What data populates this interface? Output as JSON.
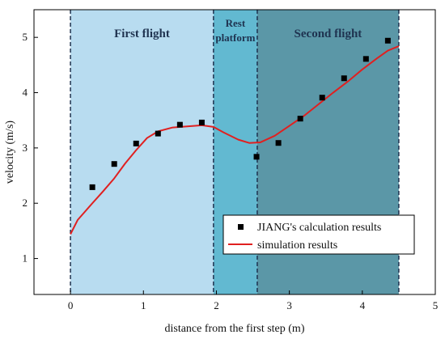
{
  "chart_data": {
    "type": "scatter",
    "xlabel": "distance from the first step (m)",
    "ylabel": "velocity (m/s)",
    "xlim": [
      -0.5,
      5
    ],
    "ylim": [
      0.35,
      5.5
    ],
    "xticks": [
      0,
      1,
      2,
      3,
      4,
      5
    ],
    "yticks": [
      1,
      2,
      3,
      4,
      5
    ],
    "grid": false,
    "legend_position": "bottom-right",
    "regions": [
      {
        "label": "First flight",
        "x_start": 0,
        "x_end": 1.96,
        "color": "#b8dcf0"
      },
      {
        "label_lines": [
          "Rest",
          "platform"
        ],
        "x_start": 1.96,
        "x_end": 2.56,
        "color": "#62b9d1"
      },
      {
        "label": "Second flight",
        "x_start": 2.56,
        "x_end": 4.5,
        "color": "#5b97a7"
      }
    ],
    "series": [
      {
        "name": "JIANG's calculation results",
        "kind": "scatter",
        "color": "#000000",
        "x": [
          0.3,
          0.6,
          0.9,
          1.2,
          1.5,
          1.8,
          2.55,
          2.85,
          3.15,
          3.45,
          3.75,
          4.05,
          4.35
        ],
        "y": [
          2.29,
          2.71,
          3.08,
          3.26,
          3.42,
          3.46,
          2.84,
          3.09,
          3.53,
          3.91,
          4.26,
          4.61,
          4.94
        ]
      },
      {
        "name": "simulation results",
        "kind": "line",
        "color": "#e02020",
        "x": [
          0,
          0.1,
          0.2,
          0.3,
          0.45,
          0.6,
          0.75,
          0.9,
          1.05,
          1.2,
          1.4,
          1.6,
          1.8,
          1.96,
          2.1,
          2.3,
          2.45,
          2.6,
          2.8,
          3.0,
          3.2,
          3.4,
          3.6,
          3.8,
          4.0,
          4.2,
          4.35,
          4.5
        ],
        "y": [
          1.44,
          1.7,
          1.85,
          2.0,
          2.22,
          2.45,
          2.72,
          2.96,
          3.18,
          3.3,
          3.37,
          3.39,
          3.41,
          3.38,
          3.28,
          3.15,
          3.09,
          3.1,
          3.22,
          3.4,
          3.58,
          3.79,
          4.0,
          4.2,
          4.42,
          4.62,
          4.76,
          4.84
        ]
      }
    ]
  }
}
